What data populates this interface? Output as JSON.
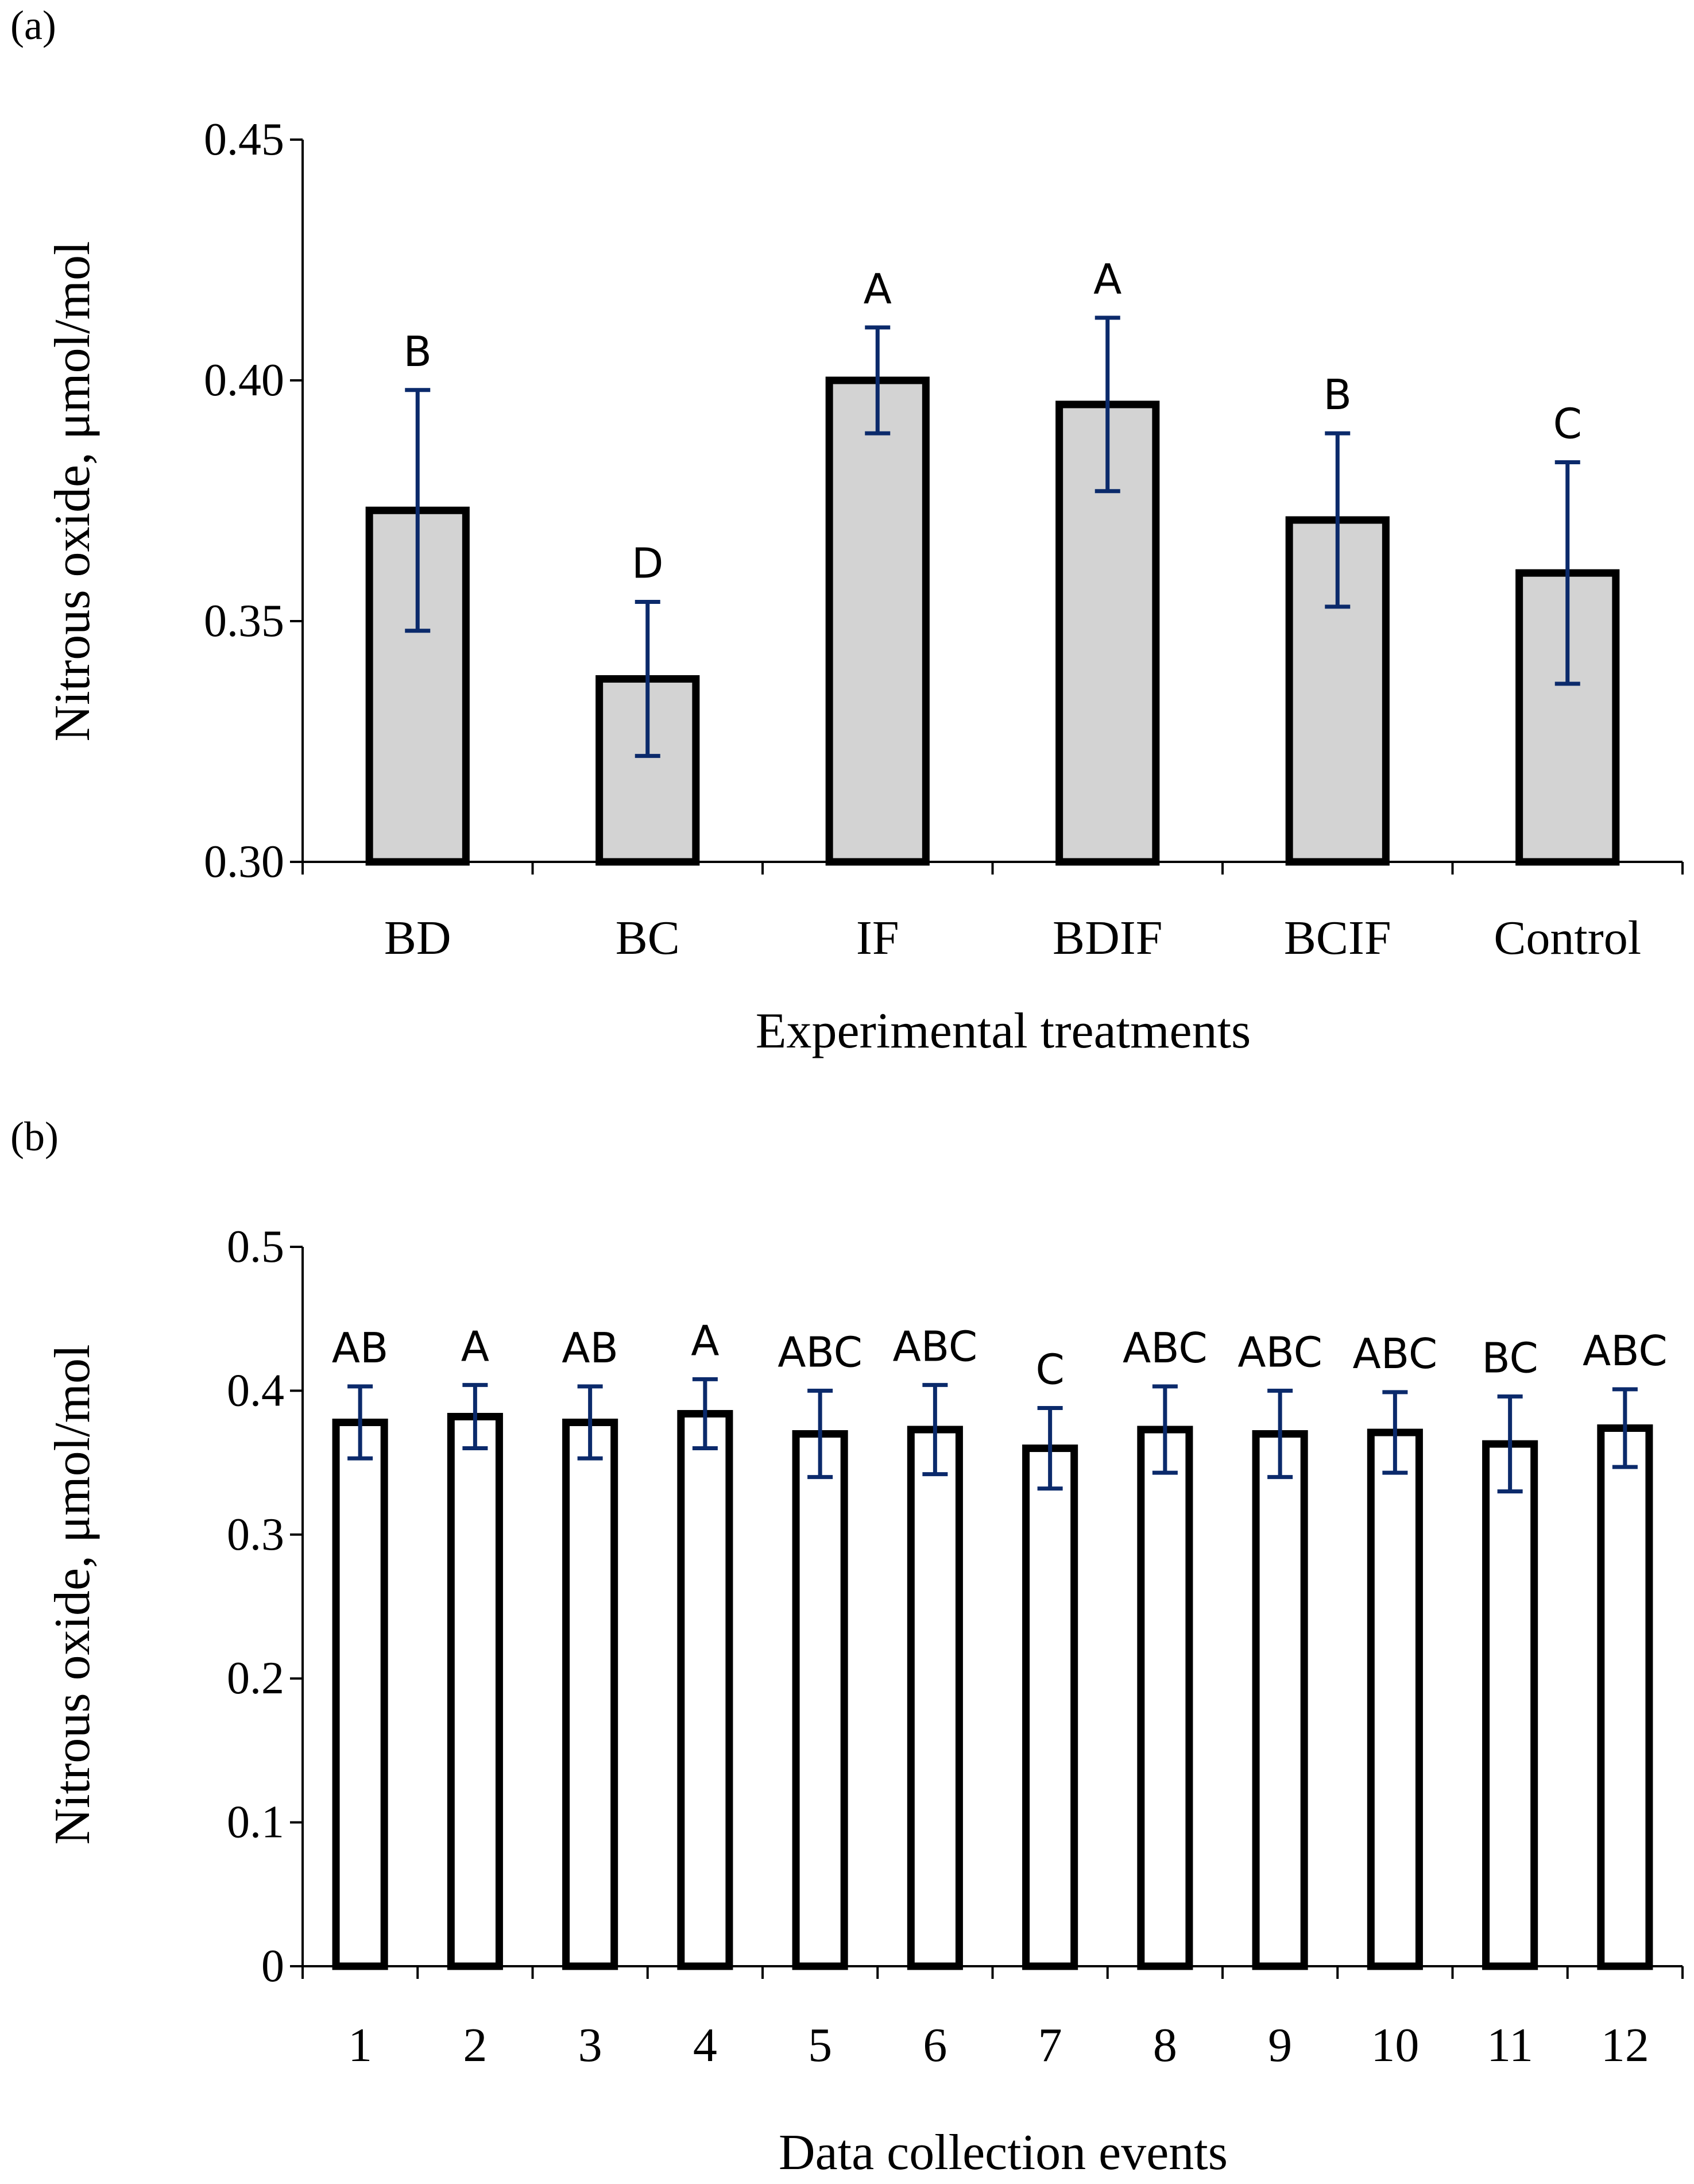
{
  "chart_data": [
    {
      "panel_label": "(a)",
      "type": "bar",
      "title": "",
      "xlabel": "Experimental treatments",
      "ylabel": "Nitrous oxide, μmol/mol",
      "ylim": [
        0.3,
        0.45
      ],
      "y_ticks": [
        "0.30",
        "0.35",
        "0.40",
        "0.45"
      ],
      "y_tick_values": [
        0.3,
        0.35,
        0.4,
        0.45
      ],
      "categories": [
        "BD",
        "BC",
        "IF",
        "BDIF",
        "BCIF",
        "Control"
      ],
      "values": [
        0.373,
        0.338,
        0.4,
        0.395,
        0.371,
        0.36
      ],
      "error_bars": [
        0.025,
        0.016,
        0.011,
        0.018,
        0.018,
        0.023
      ],
      "letters": [
        "B",
        "D",
        "A",
        "A",
        "B",
        "C"
      ],
      "bar_fill": "#d3d3d3",
      "bar_stroke": "#000000",
      "error_color": "#0b2a6b",
      "grid": false
    },
    {
      "panel_label": "(b)",
      "type": "bar",
      "title": "",
      "xlabel": "Data collection events",
      "ylabel": "Nitrous oxide, μmol/mol",
      "ylim": [
        0,
        0.5
      ],
      "y_ticks": [
        "0",
        "0.1",
        "0.2",
        "0.3",
        "0.4",
        "0.5"
      ],
      "y_tick_values": [
        0,
        0.1,
        0.2,
        0.3,
        0.4,
        0.5
      ],
      "categories": [
        "1",
        "2",
        "3",
        "4",
        "5",
        "6",
        "7",
        "8",
        "9",
        "10",
        "11",
        "12"
      ],
      "values": [
        0.378,
        0.382,
        0.378,
        0.384,
        0.37,
        0.373,
        0.36,
        0.373,
        0.37,
        0.371,
        0.363,
        0.374
      ],
      "error_bars": [
        0.025,
        0.022,
        0.025,
        0.024,
        0.03,
        0.031,
        0.028,
        0.03,
        0.03,
        0.028,
        0.033,
        0.027
      ],
      "letters": [
        "AB",
        "A",
        "AB",
        "A",
        "ABC",
        "ABC",
        "C",
        "ABC",
        "ABC",
        "ABC",
        "BC",
        "ABC"
      ],
      "bar_fill": "#ffffff",
      "bar_stroke": "#000000",
      "error_color": "#0b2a6b",
      "grid": false
    }
  ]
}
